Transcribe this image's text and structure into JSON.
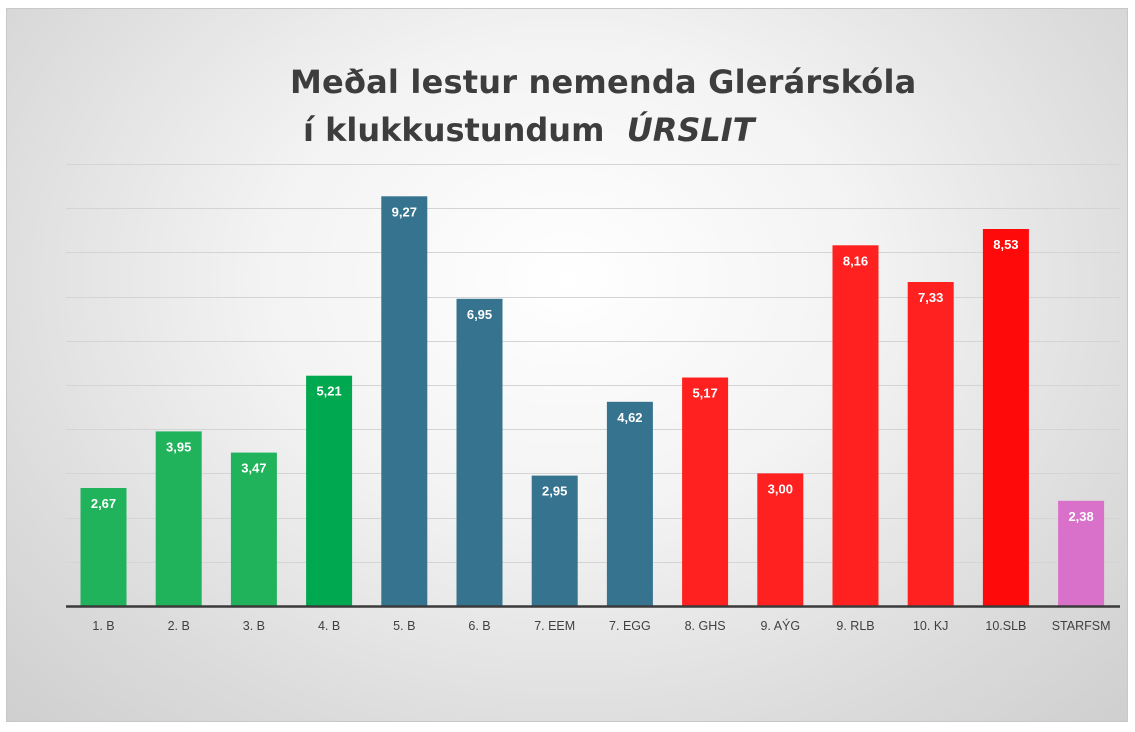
{
  "title": {
    "line1": "Meðal lestur nemenda Glerárskóla",
    "line2_prefix": "í klukkustundum  ",
    "line2_emphasis": "ÚRSLIT"
  },
  "chart_data": {
    "type": "bar",
    "title": "Meðal lestur nemenda Glerárskóla í klukkustundum ÚRSLIT",
    "categories": [
      "1. B",
      "2. B",
      "3. B",
      "4. B",
      "5. B",
      "6. B",
      "7. EEM",
      "7. EGG",
      "8. GHS",
      "9. AÝG",
      "9. RLB",
      "10. KJ",
      "10.SLB",
      "STARFSM"
    ],
    "values": [
      2.67,
      3.95,
      3.47,
      5.21,
      9.27,
      6.95,
      2.95,
      4.62,
      5.17,
      3.0,
      8.16,
      7.33,
      8.53,
      2.38
    ],
    "value_labels": [
      "2,67",
      "3,95",
      "3,47",
      "5,21",
      "9,27",
      "6,95",
      "2,95",
      "4,62",
      "5,17",
      "3,00",
      "8,16",
      "7,33",
      "8,53",
      "2,38"
    ],
    "bar_colors": [
      "#21b25c",
      "#21b25c",
      "#21b25c",
      "#00a84f",
      "#36738f",
      "#36738f",
      "#36738f",
      "#36738f",
      "#ff2020",
      "#ff2020",
      "#ff2020",
      "#ff2020",
      "#ff0a0a",
      "#d970c9"
    ],
    "ylim": [
      0,
      10
    ],
    "gridline_step": 1,
    "grid": true,
    "axis_color": "#3a3a3a",
    "grid_color": "#d4d4d4",
    "xlabel": "",
    "ylabel": ""
  }
}
